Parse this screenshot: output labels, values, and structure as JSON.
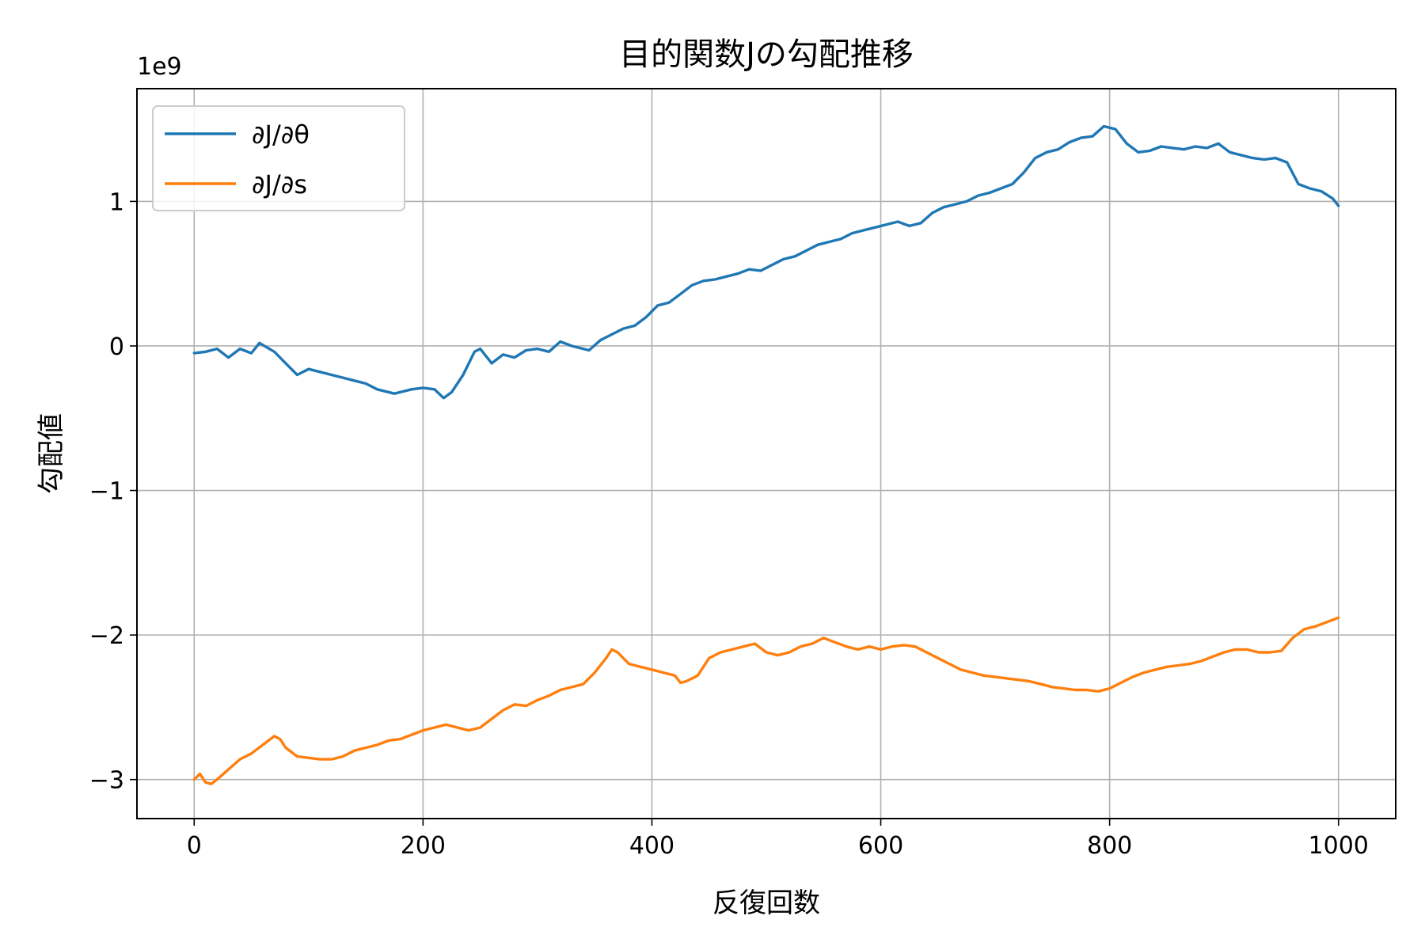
{
  "chart_data": {
    "type": "line",
    "title": "目的関数Jの勾配推移",
    "xlabel": "反復回数",
    "ylabel": "勾配値",
    "y_offset_label": "1e9",
    "xlim": [
      -50,
      1050
    ],
    "ylim": [
      -3.27,
      1.78
    ],
    "x_ticks": [
      0,
      200,
      400,
      600,
      800,
      1000
    ],
    "x_tick_labels": [
      "0",
      "200",
      "400",
      "600",
      "800",
      "1000"
    ],
    "y_ticks": [
      -3,
      -2,
      -1,
      0,
      1
    ],
    "y_tick_labels": [
      "−3",
      "−2",
      "−1",
      "0",
      "1"
    ],
    "grid": true,
    "legend_position": "top-left",
    "series": [
      {
        "name": "∂J/∂θ",
        "color": "#1f77b4",
        "x": [
          0,
          10,
          20,
          30,
          40,
          50,
          57,
          70,
          80,
          90,
          100,
          110,
          120,
          130,
          140,
          150,
          160,
          175,
          190,
          200,
          210,
          218,
          225,
          235,
          245,
          250,
          260,
          270,
          280,
          290,
          300,
          310,
          320,
          330,
          345,
          355,
          365,
          375,
          385,
          395,
          405,
          415,
          425,
          435,
          445,
          455,
          465,
          475,
          485,
          495,
          505,
          515,
          525,
          535,
          545,
          555,
          565,
          575,
          585,
          595,
          605,
          615,
          625,
          635,
          645,
          655,
          665,
          675,
          685,
          695,
          705,
          715,
          725,
          735,
          745,
          755,
          765,
          775,
          785,
          795,
          805,
          815,
          825,
          835,
          845,
          855,
          865,
          875,
          885,
          895,
          905,
          915,
          925,
          935,
          945,
          955,
          965,
          975,
          985,
          995,
          1000
        ],
        "y": [
          -0.05,
          -0.04,
          -0.02,
          -0.08,
          -0.02,
          -0.05,
          0.02,
          -0.04,
          -0.12,
          -0.2,
          -0.16,
          -0.18,
          -0.2,
          -0.22,
          -0.24,
          -0.26,
          -0.3,
          -0.33,
          -0.3,
          -0.29,
          -0.3,
          -0.36,
          -0.32,
          -0.2,
          -0.04,
          -0.02,
          -0.12,
          -0.06,
          -0.08,
          -0.03,
          -0.02,
          -0.04,
          0.03,
          0.0,
          -0.03,
          0.04,
          0.08,
          0.12,
          0.14,
          0.2,
          0.28,
          0.3,
          0.36,
          0.42,
          0.45,
          0.46,
          0.48,
          0.5,
          0.53,
          0.52,
          0.56,
          0.6,
          0.62,
          0.66,
          0.7,
          0.72,
          0.74,
          0.78,
          0.8,
          0.82,
          0.84,
          0.86,
          0.83,
          0.85,
          0.92,
          0.96,
          0.98,
          1.0,
          1.04,
          1.06,
          1.09,
          1.12,
          1.2,
          1.3,
          1.34,
          1.36,
          1.41,
          1.44,
          1.45,
          1.52,
          1.5,
          1.4,
          1.34,
          1.35,
          1.38,
          1.37,
          1.36,
          1.38,
          1.37,
          1.4,
          1.34,
          1.32,
          1.3,
          1.29,
          1.3,
          1.27,
          1.12,
          1.09,
          1.07,
          1.02,
          0.97
        ]
      },
      {
        "name": "∂J/∂s",
        "color": "#ff7f0e",
        "x": [
          0,
          5,
          10,
          15,
          20,
          30,
          40,
          50,
          60,
          70,
          75,
          80,
          90,
          100,
          110,
          120,
          130,
          140,
          150,
          160,
          170,
          180,
          190,
          200,
          210,
          220,
          230,
          240,
          250,
          260,
          270,
          280,
          290,
          300,
          310,
          320,
          330,
          340,
          350,
          360,
          365,
          370,
          380,
          390,
          400,
          410,
          420,
          425,
          430,
          440,
          450,
          460,
          470,
          480,
          490,
          500,
          510,
          520,
          530,
          540,
          550,
          560,
          570,
          580,
          590,
          600,
          610,
          620,
          630,
          640,
          650,
          660,
          670,
          680,
          690,
          700,
          710,
          720,
          730,
          740,
          750,
          760,
          770,
          780,
          790,
          800,
          810,
          820,
          830,
          840,
          850,
          860,
          870,
          880,
          890,
          900,
          910,
          920,
          930,
          940,
          950,
          960,
          970,
          980,
          990,
          1000
        ],
        "y": [
          -3.0,
          -2.96,
          -3.02,
          -3.03,
          -3.0,
          -2.93,
          -2.86,
          -2.82,
          -2.76,
          -2.7,
          -2.72,
          -2.78,
          -2.84,
          -2.85,
          -2.86,
          -2.86,
          -2.84,
          -2.8,
          -2.78,
          -2.76,
          -2.73,
          -2.72,
          -2.69,
          -2.66,
          -2.64,
          -2.62,
          -2.64,
          -2.66,
          -2.64,
          -2.58,
          -2.52,
          -2.48,
          -2.49,
          -2.45,
          -2.42,
          -2.38,
          -2.36,
          -2.34,
          -2.26,
          -2.16,
          -2.1,
          -2.12,
          -2.2,
          -2.22,
          -2.24,
          -2.26,
          -2.28,
          -2.33,
          -2.32,
          -2.28,
          -2.16,
          -2.12,
          -2.1,
          -2.08,
          -2.06,
          -2.12,
          -2.14,
          -2.12,
          -2.08,
          -2.06,
          -2.02,
          -2.05,
          -2.08,
          -2.1,
          -2.08,
          -2.1,
          -2.08,
          -2.07,
          -2.08,
          -2.12,
          -2.16,
          -2.2,
          -2.24,
          -2.26,
          -2.28,
          -2.29,
          -2.3,
          -2.31,
          -2.32,
          -2.34,
          -2.36,
          -2.37,
          -2.38,
          -2.38,
          -2.39,
          -2.37,
          -2.33,
          -2.29,
          -2.26,
          -2.24,
          -2.22,
          -2.21,
          -2.2,
          -2.18,
          -2.15,
          -2.12,
          -2.1,
          -2.1,
          -2.12,
          -2.12,
          -2.11,
          -2.02,
          -1.96,
          -1.94,
          -1.91,
          -1.88
        ]
      }
    ]
  }
}
